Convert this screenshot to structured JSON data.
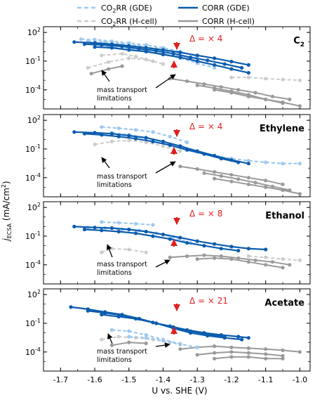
{
  "legend": {
    "items": [
      {
        "label_main": "CO",
        "label_sub": "2",
        "label_rest": "RR (GDE)",
        "color": "#9ec9ee",
        "dash": true
      },
      {
        "label_main": "CORR (GDE)",
        "label_sub": "",
        "label_rest": "",
        "color": "#0b5cad",
        "dash": false
      },
      {
        "label_main": "CO",
        "label_sub": "2",
        "label_rest": "RR (H-cell)",
        "color": "#cccccc",
        "dash": true
      },
      {
        "label_main": "CORR (H-cell)",
        "label_sub": "",
        "label_rest": "",
        "color": "#9a9a9a",
        "dash": false
      }
    ]
  },
  "axes": {
    "xlabel": "U vs. SHE (V)",
    "ylabel_main": "j",
    "ylabel_sub": "ECSA",
    "ylabel_units": " (mA/cm",
    "ylabel_sup": "2",
    "ylabel_close": ")",
    "x_ticks": [
      "-1.7",
      "-1.6",
      "-1.5",
      "-1.4",
      "-1.3",
      "-1.2",
      "-1.1",
      "-1.0"
    ],
    "y_ticks": [
      {
        "base": "10",
        "exp": "2"
      },
      {
        "base": "10",
        "exp": "-1"
      },
      {
        "base": "10",
        "exp": "-4"
      }
    ]
  },
  "annotation_text": {
    "mass_line1": "mass transport",
    "mass_line2": "limitations"
  },
  "colors": {
    "co2rr_gde": "#9ec9ee",
    "corr_gde": "#0b5cad",
    "co2rr_hcell": "#cccccc",
    "corr_hcell": "#9a9a9a",
    "delta": "#e02020"
  },
  "chart_data": [
    {
      "type": "line",
      "title": "C2",
      "delta_label": "Δ = × 4",
      "xlim": [
        -1.75,
        -0.97
      ],
      "ylim_log10": [
        -6,
        2.6
      ],
      "yscale": "log",
      "series": [
        {
          "name": "CO2RR (GDE)",
          "style": "co2rr_gde",
          "x": [
            -1.64,
            -1.6,
            -1.55,
            -1.5,
            -1.45,
            -1.4,
            -1.35,
            -1.3
          ],
          "y": [
            20,
            18,
            12,
            8,
            5,
            2.5,
            1,
            0.3
          ]
        },
        {
          "name": "CO2RR (GDE)",
          "style": "co2rr_gde",
          "x": [
            -1.62,
            -1.57,
            -1.52,
            -1.47,
            -1.42,
            -1.37,
            -1.32
          ],
          "y": [
            12,
            10,
            7,
            4,
            2,
            0.8,
            0.2
          ]
        },
        {
          "name": "CO2RR (GDE)",
          "style": "co2rr_gde",
          "x": [
            -1.56,
            -1.5,
            -1.45,
            -1.4,
            -1.35,
            -1.3,
            -1.25
          ],
          "y": [
            3,
            2,
            1.2,
            0.6,
            0.2,
            0.06,
            0.02
          ]
        },
        {
          "name": "CORR (GDE)",
          "style": "corr_gde",
          "x": [
            -1.66,
            -1.6,
            -1.55,
            -1.5,
            -1.45,
            -1.4,
            -1.35,
            -1.3,
            -1.25,
            -1.2,
            -1.15
          ],
          "y": [
            10,
            8,
            6,
            4,
            2.5,
            1.5,
            0.8,
            0.4,
            0.2,
            0.09,
            0.04
          ]
        },
        {
          "name": "CORR (GDE)",
          "style": "corr_gde",
          "x": [
            -1.63,
            -1.58,
            -1.52,
            -1.47,
            -1.42,
            -1.37,
            -1.32,
            -1.27,
            -1.22,
            -1.17
          ],
          "y": [
            6,
            5,
            3.5,
            2,
            1.2,
            0.6,
            0.25,
            0.12,
            0.05,
            0.02
          ]
        },
        {
          "name": "CORR (GDE)",
          "style": "corr_gde",
          "x": [
            -1.6,
            -1.55,
            -1.5,
            -1.45,
            -1.4,
            -1.35,
            -1.3,
            -1.25,
            -1.2,
            -1.15
          ],
          "y": [
            3,
            2.5,
            1.5,
            1,
            0.5,
            0.25,
            0.1,
            0.04,
            0.015,
            0.006
          ]
        },
        {
          "name": "CO2RR (H-cell)",
          "style": "co2rr_hcell",
          "x": [
            -1.62,
            -1.56,
            -1.5,
            -1.45,
            -1.4
          ],
          "y": [
            0.02,
            0.08,
            0.2,
            0.15,
            0.05
          ]
        },
        {
          "name": "CO2RR (H-cell)",
          "style": "co2rr_hcell",
          "x": [
            -1.58,
            -1.52,
            -1.48,
            -1.43
          ],
          "y": [
            0.4,
            0.6,
            0.3,
            0.1
          ]
        },
        {
          "name": "CORR (H-cell)",
          "style": "corr_hcell",
          "x": [
            -1.61,
            -1.56,
            -1.52
          ],
          "y": [
            0.005,
            0.015,
            0.03
          ]
        },
        {
          "name": "CORR (H-cell)",
          "style": "corr_hcell",
          "x": [
            -1.38,
            -1.33,
            -1.28,
            -1.23,
            -1.18,
            -1.13,
            -1.08,
            -1.03
          ],
          "y": [
            0.0015,
            0.0008,
            0.0004,
            0.0002,
            0.0001,
            5e-05,
            2e-05,
            1e-05
          ]
        },
        {
          "name": "CORR (H-cell)",
          "style": "corr_hcell",
          "x": [
            -1.3,
            -1.25,
            -1.2,
            -1.15,
            -1.1,
            -1.05
          ],
          "y": [
            0.0003,
            0.00015,
            7e-05,
            3e-05,
            1e-05,
            4e-06
          ]
        },
        {
          "name": "CORR (H-cell)",
          "style": "corr_hcell",
          "x": [
            -1.25,
            -1.2,
            -1.15,
            -1.1,
            -1.05,
            -1.0
          ],
          "y": [
            0.0001,
            5e-05,
            2e-05,
            1e-05,
            5e-06,
            2e-06
          ]
        },
        {
          "name": "CO2RR (H-cell)",
          "style": "co2rr_hcell",
          "x": [
            -1.2,
            -1.15,
            -1.1,
            -1.05,
            -1.0
          ],
          "y": [
            0.002,
            0.002,
            0.0015,
            0.0012,
            0.001
          ]
        }
      ]
    },
    {
      "type": "line",
      "title": "Ethylene",
      "delta_label": "Δ = × 4",
      "xlim": [
        -1.75,
        -0.97
      ],
      "ylim_log10": [
        -6,
        2.6
      ],
      "yscale": "log",
      "series": [
        {
          "name": "CO2RR (GDE)",
          "style": "co2rr_gde",
          "x": [
            -1.58,
            -1.53,
            -1.48,
            -1.43,
            -1.38,
            -1.33
          ],
          "y": [
            20,
            15,
            10,
            6,
            2,
            0.5
          ]
        },
        {
          "name": "CO2RR (GDE)",
          "style": "co2rr_gde",
          "x": [
            -1.55,
            -1.5,
            -1.45,
            -1.4,
            -1.35,
            -1.3,
            -1.25,
            -1.2,
            -1.15,
            -1.1,
            -1.05,
            -1.0
          ],
          "y": [
            5,
            3,
            1.5,
            0.6,
            0.2,
            0.05,
            0.02,
            0.01,
            0.006,
            0.004,
            0.003,
            0.003
          ]
        },
        {
          "name": "CORR (GDE)",
          "style": "corr_gde",
          "x": [
            -1.66,
            -1.6,
            -1.55,
            -1.5,
            -1.45,
            -1.4,
            -1.35,
            -1.3,
            -1.25,
            -1.2,
            -1.15
          ],
          "y": [
            6,
            5,
            4,
            2.5,
            1.5,
            0.6,
            0.2,
            0.06,
            0.02,
            0.007,
            0.003
          ]
        },
        {
          "name": "CORR (GDE)",
          "style": "corr_gde",
          "x": [
            -1.63,
            -1.58,
            -1.53,
            -1.48,
            -1.43,
            -1.38,
            -1.33,
            -1.28,
            -1.23,
            -1.18
          ],
          "y": [
            4,
            3,
            2,
            1.2,
            0.6,
            0.25,
            0.08,
            0.03,
            0.01,
            0.004
          ]
        },
        {
          "name": "CO2RR (H-cell)",
          "style": "co2rr_hcell",
          "x": [
            -1.6,
            -1.55,
            -1.5,
            -1.45,
            -1.4,
            -1.35
          ],
          "y": [
            0.3,
            0.6,
            0.8,
            0.5,
            0.2,
            0.06
          ]
        },
        {
          "name": "CORR (H-cell)",
          "style": "corr_hcell",
          "x": [
            -1.35,
            -1.3,
            -1.25,
            -1.2,
            -1.15,
            -1.1,
            -1.05
          ],
          "y": [
            0.0015,
            0.0008,
            0.0004,
            0.0002,
            0.0001,
            5e-05,
            2e-05
          ]
        },
        {
          "name": "CORR (H-cell)",
          "style": "corr_hcell",
          "x": [
            -1.28,
            -1.23,
            -1.18,
            -1.13,
            -1.08,
            -1.03
          ],
          "y": [
            0.0003,
            0.00015,
            7e-05,
            3e-05,
            1.2e-05,
            5e-06
          ]
        },
        {
          "name": "CORR (H-cell)",
          "style": "corr_hcell",
          "x": [
            -1.25,
            -1.2,
            -1.15,
            -1.1,
            -1.05,
            -1.0
          ],
          "y": [
            8e-05,
            4e-05,
            2e-05,
            1e-05,
            5e-06,
            2e-06
          ]
        }
      ]
    },
    {
      "type": "line",
      "title": "Ethanol",
      "delta_label": "Δ = × 8",
      "xlim": [
        -1.75,
        -0.97
      ],
      "ylim_log10": [
        -6,
        2.6
      ],
      "yscale": "log",
      "series": [
        {
          "name": "CO2RR (GDE)",
          "style": "co2rr_gde",
          "x": [
            -1.58,
            -1.53,
            -1.48,
            -1.43
          ],
          "y": [
            3,
            2.5,
            2,
            1.5
          ]
        },
        {
          "name": "CO2RR (GDE)",
          "style": "co2rr_gde",
          "x": [
            -1.62,
            -1.57,
            -1.52,
            -1.47,
            -1.42,
            -1.37,
            -1.32
          ],
          "y": [
            0.8,
            0.7,
            0.5,
            0.4,
            0.2,
            0.08,
            0.02
          ]
        },
        {
          "name": "CORR (GDE)",
          "style": "corr_gde",
          "x": [
            -1.66,
            -1.6,
            -1.55,
            -1.5,
            -1.45,
            -1.4,
            -1.35,
            -1.3,
            -1.25,
            -1.2,
            -1.15,
            -1.1
          ],
          "y": [
            1,
            0.8,
            0.7,
            0.5,
            0.3,
            0.15,
            0.07,
            0.03,
            0.015,
            0.008,
            0.005,
            0.004
          ]
        },
        {
          "name": "CORR (GDE)",
          "style": "corr_gde",
          "x": [
            -1.63,
            -1.58,
            -1.53,
            -1.48,
            -1.43,
            -1.38,
            -1.33,
            -1.28,
            -1.23,
            -1.18
          ],
          "y": [
            0.5,
            0.4,
            0.3,
            0.2,
            0.1,
            0.05,
            0.02,
            0.01,
            0.005,
            0.003
          ]
        },
        {
          "name": "CO2RR (H-cell)",
          "style": "co2rr_hcell",
          "x": [
            -1.58,
            -1.55,
            -1.5,
            -1.45
          ],
          "y": [
            0.002,
            0.005,
            0.004,
            0.002
          ]
        },
        {
          "name": "CORR (H-cell)",
          "style": "corr_hcell",
          "x": [
            -1.38,
            -1.33,
            -1.28,
            -1.23,
            -1.18,
            -1.13,
            -1.08,
            -1.03
          ],
          "y": [
            0.0006,
            0.0008,
            0.001,
            0.0008,
            0.0005,
            0.0003,
            0.0002,
            0.0001
          ]
        },
        {
          "name": "CORR (H-cell)",
          "style": "corr_hcell",
          "x": [
            -1.3,
            -1.25,
            -1.2,
            -1.15,
            -1.1,
            -1.05
          ],
          "y": [
            0.0004,
            0.0005,
            0.0004,
            0.0002,
            0.0001,
            5e-05
          ]
        },
        {
          "name": "CO2RR (H-cell)",
          "style": "co2rr_hcell",
          "x": [
            -1.15,
            -1.1,
            -1.05,
            -1.0
          ],
          "y": [
            0.0008,
            0.0006,
            0.0004,
            0.0003
          ]
        }
      ]
    },
    {
      "type": "line",
      "title": "Acetate",
      "delta_label": "Δ = × 21",
      "xlim": [
        -1.75,
        -0.97
      ],
      "ylim_log10": [
        -6,
        2.6
      ],
      "yscale": "log",
      "series": [
        {
          "name": "CORR (GDE)",
          "style": "corr_gde",
          "x": [
            -1.67,
            -1.62,
            -1.57,
            -1.52,
            -1.47,
            -1.42,
            -1.37,
            -1.32,
            -1.27,
            -1.22,
            -1.17
          ],
          "y": [
            5,
            3,
            1.5,
            0.8,
            0.3,
            0.1,
            0.03,
            0.01,
            0.005,
            0.003,
            0.002
          ]
        },
        {
          "name": "CORR (GDE)",
          "style": "corr_gde",
          "x": [
            -1.62,
            -1.57,
            -1.52,
            -1.47,
            -1.42,
            -1.37,
            -1.32,
            -1.27,
            -1.22
          ],
          "y": [
            2,
            1.2,
            0.7,
            0.3,
            0.1,
            0.04,
            0.015,
            0.007,
            0.004
          ]
        },
        {
          "name": "CORR (GDE)",
          "style": "corr_gde",
          "x": [
            -1.58,
            -1.53,
            -1.48,
            -1.43,
            -1.38,
            -1.33,
            -1.28,
            -1.23,
            -1.18,
            -1.15
          ],
          "y": [
            0.8,
            0.5,
            0.3,
            0.12,
            0.05,
            0.02,
            0.01,
            0.006,
            0.004,
            0.003
          ]
        },
        {
          "name": "CO2RR (GDE)",
          "style": "co2rr_gde",
          "x": [
            -1.55,
            -1.5,
            -1.45,
            -1.4,
            -1.35,
            -1.3
          ],
          "y": [
            0.02,
            0.015,
            0.006,
            0.002,
            0.0007,
            0.0003
          ]
        },
        {
          "name": "CO2RR (GDE)",
          "style": "co2rr_gde",
          "x": [
            -1.5,
            -1.45,
            -1.4,
            -1.35
          ],
          "y": [
            0.004,
            0.003,
            0.0015,
            0.0006
          ]
        },
        {
          "name": "CO2RR (H-cell)",
          "style": "co2rr_hcell",
          "x": [
            -1.58,
            -1.53,
            -1.48,
            -1.43,
            -1.38
          ],
          "y": [
            0.002,
            0.004,
            0.003,
            0.002,
            0.001
          ]
        },
        {
          "name": "CORR (H-cell)",
          "style": "corr_hcell",
          "x": [
            -1.55,
            -1.5,
            -1.45
          ],
          "y": [
            0.0005,
            0.001,
            0.0008
          ]
        },
        {
          "name": "CORR (H-cell)",
          "style": "corr_hcell",
          "x": [
            -1.35,
            -1.3,
            -1.25,
            -1.2,
            -1.15,
            -1.1,
            -1.05,
            -1.0
          ],
          "y": [
            0.0002,
            0.0003,
            0.0004,
            0.0003,
            0.00025,
            0.0002,
            0.00015,
            0.0001
          ]
        },
        {
          "name": "CORR (H-cell)",
          "style": "corr_hcell",
          "x": [
            -1.3,
            -1.25,
            -1.2,
            -1.15,
            -1.1,
            -1.05
          ],
          "y": [
            5e-05,
            8e-05,
            0.0001,
            8e-05,
            6e-05,
            4e-05
          ]
        },
        {
          "name": "CORR (H-cell)",
          "style": "corr_hcell",
          "x": [
            -1.25,
            -1.2,
            -1.15,
            -1.1,
            -1.05
          ],
          "y": [
            2e-05,
            3e-05,
            3e-05,
            2e-05,
            2e-05
          ]
        }
      ]
    }
  ]
}
